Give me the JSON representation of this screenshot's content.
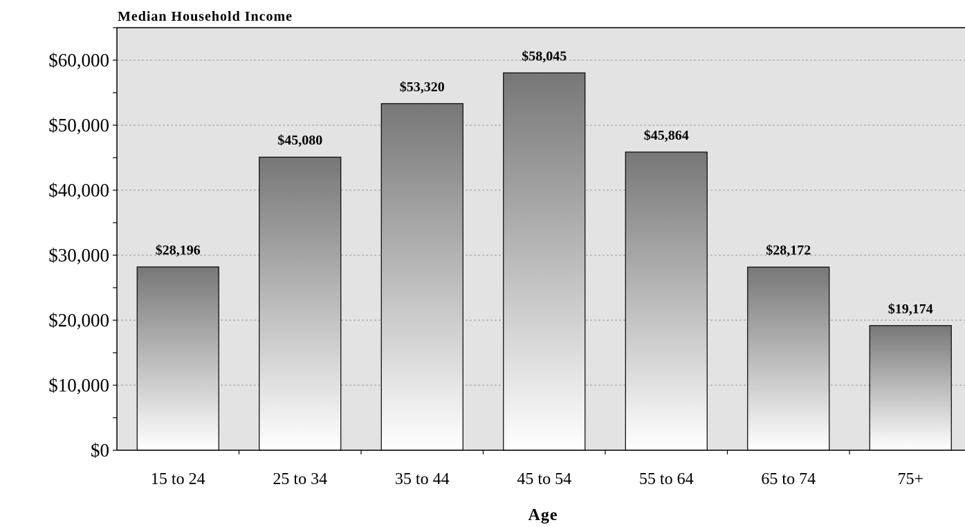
{
  "chart_data": {
    "type": "bar",
    "title": "Median Household Income",
    "xlabel": "Age",
    "ylabel": "",
    "categories": [
      "15 to 24",
      "25 to 34",
      "35 to 44",
      "45 to 54",
      "55 to 64",
      "65 to 74",
      "75+"
    ],
    "values": [
      28196,
      45080,
      53320,
      58045,
      45864,
      28172,
      19174
    ],
    "data_labels": [
      "$28,196",
      "$45,080",
      "$53,320",
      "$58,045",
      "$45,864",
      "$28,172",
      "$19,174"
    ],
    "y_ticks": [
      0,
      10000,
      20000,
      30000,
      40000,
      50000,
      60000
    ],
    "y_tick_labels": [
      "$0",
      "$10,000",
      "$20,000",
      "$30,000",
      "$40,000",
      "$50,000",
      "$60,000"
    ],
    "ylim": [
      0,
      65000
    ],
    "grid": true,
    "colors": {
      "plot_background": "#e3e3e3",
      "bar_top": "#777777",
      "bar_bottom": "#ffffff",
      "grid": "#999999"
    }
  }
}
